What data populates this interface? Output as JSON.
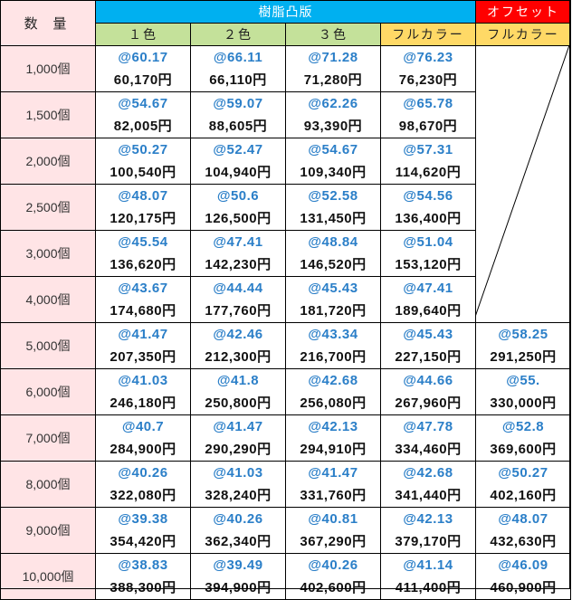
{
  "header": {
    "quantity_label": "数 量",
    "group_resin": "樹脂凸版",
    "group_offset": "オフセット",
    "columns": [
      "１色",
      "２色",
      "３色",
      "フルカラー",
      "フルカラー"
    ]
  },
  "colors": {
    "resin_header": "#00b0f0",
    "offset_header": "#ff0000",
    "color_col_header": "#c4e19a",
    "fullcolor_col_header": "#ffd966",
    "quantity_bg": "#ffe4e6",
    "unit_price_text": "#2b7fc8"
  },
  "rows": [
    {
      "qty": "1,000個",
      "cells": [
        {
          "unit": "@60.17",
          "total": "60,170円"
        },
        {
          "unit": "@66.11",
          "total": "66,110円"
        },
        {
          "unit": "@71.28",
          "total": "71,280円"
        },
        {
          "unit": "@76.23",
          "total": "76,230円"
        },
        null
      ]
    },
    {
      "qty": "1,500個",
      "cells": [
        {
          "unit": "@54.67",
          "total": "82,005円"
        },
        {
          "unit": "@59.07",
          "total": "88,605円"
        },
        {
          "unit": "@62.26",
          "total": "93,390円"
        },
        {
          "unit": "@65.78",
          "total": "98,670円"
        },
        null
      ]
    },
    {
      "qty": "2,000個",
      "cells": [
        {
          "unit": "@50.27",
          "total": "100,540円"
        },
        {
          "unit": "@52.47",
          "total": "104,940円"
        },
        {
          "unit": "@54.67",
          "total": "109,340円"
        },
        {
          "unit": "@57.31",
          "total": "114,620円"
        },
        null
      ]
    },
    {
      "qty": "2,500個",
      "cells": [
        {
          "unit": "@48.07",
          "total": "120,175円"
        },
        {
          "unit": "@50.6",
          "total": "126,500円"
        },
        {
          "unit": "@52.58",
          "total": "131,450円"
        },
        {
          "unit": "@54.56",
          "total": "136,400円"
        },
        null
      ]
    },
    {
      "qty": "3,000個",
      "cells": [
        {
          "unit": "@45.54",
          "total": "136,620円"
        },
        {
          "unit": "@47.41",
          "total": "142,230円"
        },
        {
          "unit": "@48.84",
          "total": "146,520円"
        },
        {
          "unit": "@51.04",
          "total": "153,120円"
        },
        null
      ]
    },
    {
      "qty": "4,000個",
      "cells": [
        {
          "unit": "@43.67",
          "total": "174,680円"
        },
        {
          "unit": "@44.44",
          "total": "177,760円"
        },
        {
          "unit": "@45.43",
          "total": "181,720円"
        },
        {
          "unit": "@47.41",
          "total": "189,640円"
        },
        null
      ]
    },
    {
      "qty": "5,000個",
      "cells": [
        {
          "unit": "@41.47",
          "total": "207,350円"
        },
        {
          "unit": "@42.46",
          "total": "212,300円"
        },
        {
          "unit": "@43.34",
          "total": "216,700円"
        },
        {
          "unit": "@45.43",
          "total": "227,150円"
        },
        {
          "unit": "@58.25",
          "total": "291,250円"
        }
      ]
    },
    {
      "qty": "6,000個",
      "cells": [
        {
          "unit": "@41.03",
          "total": "246,180円"
        },
        {
          "unit": "@41.8",
          "total": "250,800円"
        },
        {
          "unit": "@42.68",
          "total": "256,080円"
        },
        {
          "unit": "@44.66",
          "total": "267,960円"
        },
        {
          "unit": "@55.",
          "total": "330,000円"
        }
      ]
    },
    {
      "qty": "7,000個",
      "cells": [
        {
          "unit": "@40.7",
          "total": "284,900円"
        },
        {
          "unit": "@41.47",
          "total": "290,290円"
        },
        {
          "unit": "@42.13",
          "total": "294,910円"
        },
        {
          "unit": "@47.78",
          "total": "334,460円"
        },
        {
          "unit": "@52.8",
          "total": "369,600円"
        }
      ]
    },
    {
      "qty": "8,000個",
      "cells": [
        {
          "unit": "@40.26",
          "total": "322,080円"
        },
        {
          "unit": "@41.03",
          "total": "328,240円"
        },
        {
          "unit": "@41.47",
          "total": "331,760円"
        },
        {
          "unit": "@42.68",
          "total": "341,440円"
        },
        {
          "unit": "@50.27",
          "total": "402,160円"
        }
      ]
    },
    {
      "qty": "9,000個",
      "cells": [
        {
          "unit": "@39.38",
          "total": "354,420円"
        },
        {
          "unit": "@40.26",
          "total": "362,340円"
        },
        {
          "unit": "@40.81",
          "total": "367,290円"
        },
        {
          "unit": "@42.13",
          "total": "379,170円"
        },
        {
          "unit": "@48.07",
          "total": "432,630円"
        }
      ]
    },
    {
      "qty": "10,000個",
      "cells": [
        {
          "unit": "@38.83",
          "total": "388,300円"
        },
        {
          "unit": "@39.49",
          "total": "394,900円"
        },
        {
          "unit": "@40.26",
          "total": "402,600円"
        },
        {
          "unit": "@41.14",
          "total": "411,400円"
        },
        {
          "unit": "@46.09",
          "total": "460,900円"
        }
      ]
    }
  ]
}
